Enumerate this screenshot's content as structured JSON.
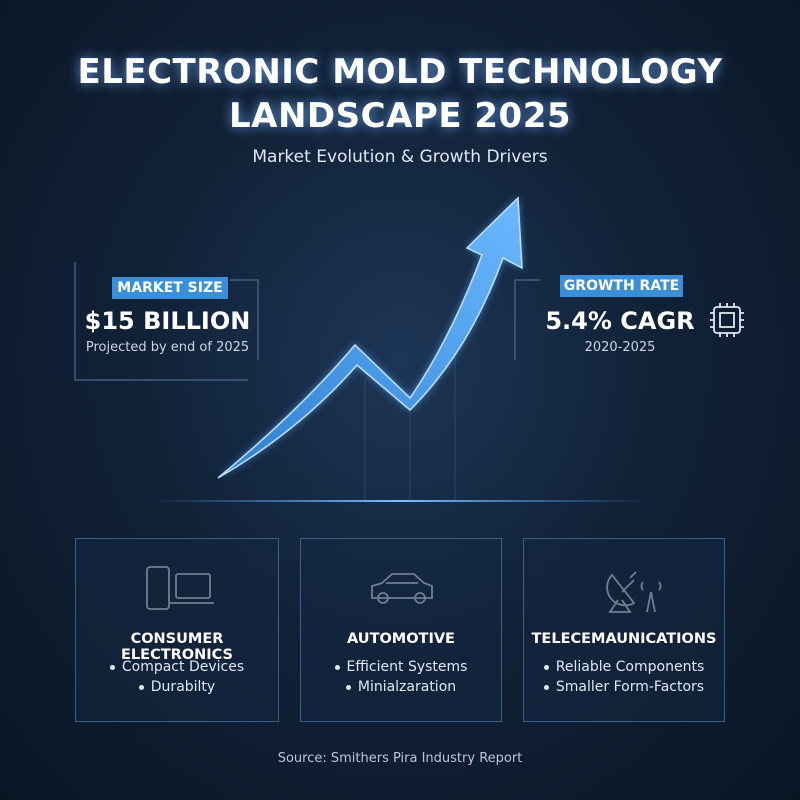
{
  "header": {
    "title_line1": "ELECTRONIC MOLD TECHNOLOGY",
    "title_line2": "LANDSCAPE 2025",
    "subtitle": "Market Evolution & Growth Drivers"
  },
  "stats": [
    {
      "label": "MARKET SIZE",
      "value": "$15 BILLION",
      "note": "Projected by end of 2025"
    },
    {
      "label": "GROWTH RATE",
      "value": "5.4% CAGR",
      "note": "2020-2025"
    }
  ],
  "sectors": [
    {
      "title": "CONSUMER ELECTRONICS",
      "bullets": [
        "Compact Devices",
        "Durabilty"
      ]
    },
    {
      "title": "AUTOMOTIVE",
      "bullets": [
        "Efficient Systems",
        "Minialzaration"
      ]
    },
    {
      "title": "TELECEMAUNICATIONS",
      "bullets": [
        "Reliable Components",
        "Smaller Form-Factors"
      ]
    }
  ],
  "footer": {
    "source": "Source: Smithers Pira Industry Report"
  }
}
